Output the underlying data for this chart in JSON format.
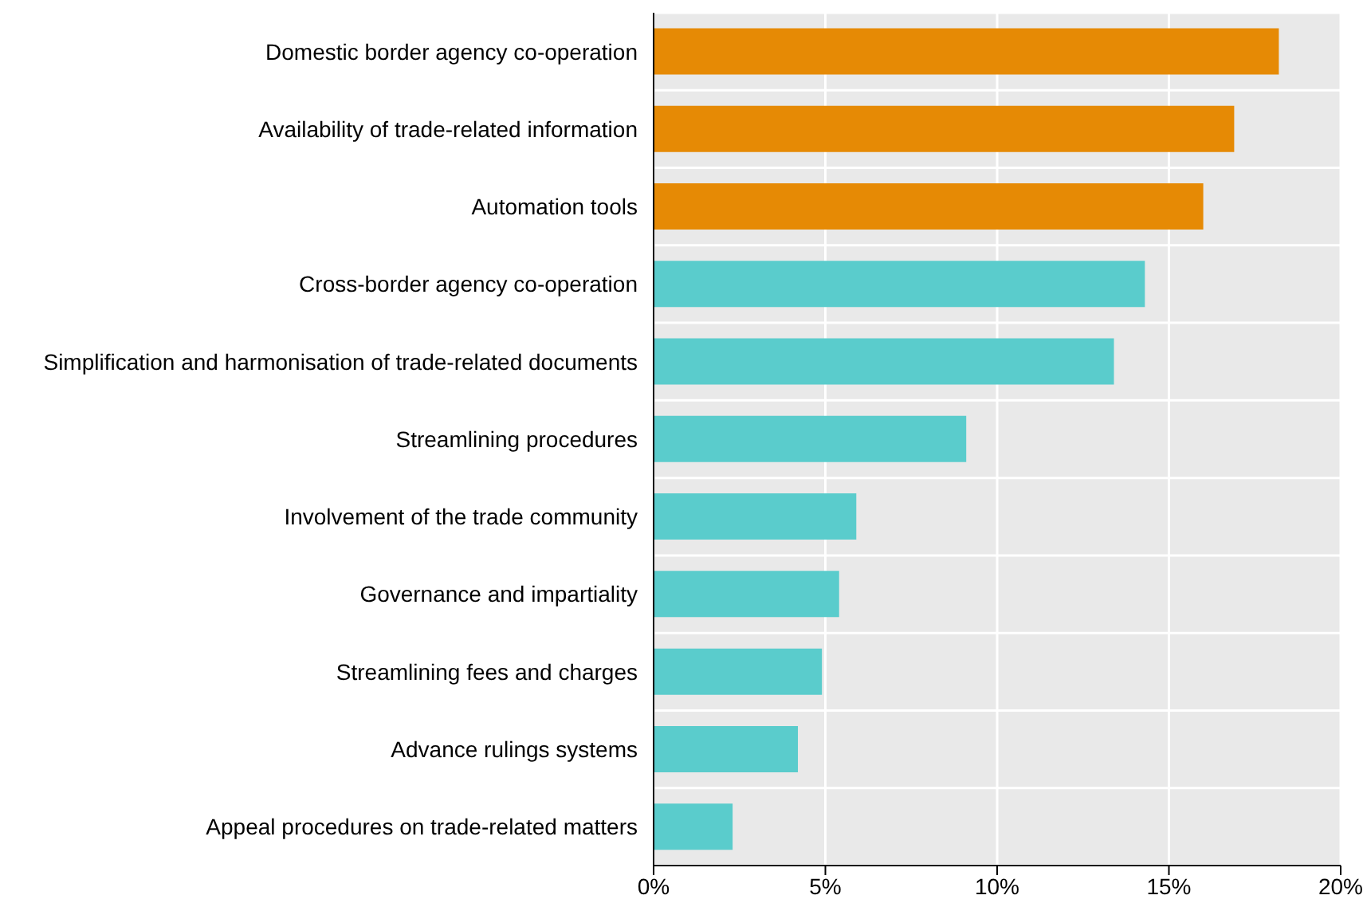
{
  "chart_data": {
    "type": "bar",
    "orientation": "horizontal",
    "categories": [
      "Domestic border agency co-operation",
      "Availability of trade-related information",
      "Automation tools",
      "Cross-border agency co-operation",
      "Simplification and harmonisation of trade-related documents",
      "Streamlining procedures",
      "Involvement of the trade community",
      "Governance and impartiality",
      "Streamlining fees and charges",
      "Advance rulings systems",
      "Appeal procedures on trade-related matters"
    ],
    "values": [
      18.2,
      16.9,
      16.0,
      14.3,
      13.4,
      9.1,
      5.9,
      5.4,
      4.9,
      4.2,
      2.3
    ],
    "colors": [
      "#e68a05",
      "#e68a05",
      "#e68a05",
      "#5acccc",
      "#5acccc",
      "#5acccc",
      "#5acccc",
      "#5acccc",
      "#5acccc",
      "#5acccc",
      "#5acccc"
    ],
    "xlim": [
      0,
      20
    ],
    "xticks": [
      {
        "value": 0,
        "label": "0%"
      },
      {
        "value": 5,
        "label": "5%"
      },
      {
        "value": 10,
        "label": "10%"
      },
      {
        "value": 15,
        "label": "15%"
      },
      {
        "value": 20,
        "label": "20%"
      }
    ],
    "grid": true
  }
}
